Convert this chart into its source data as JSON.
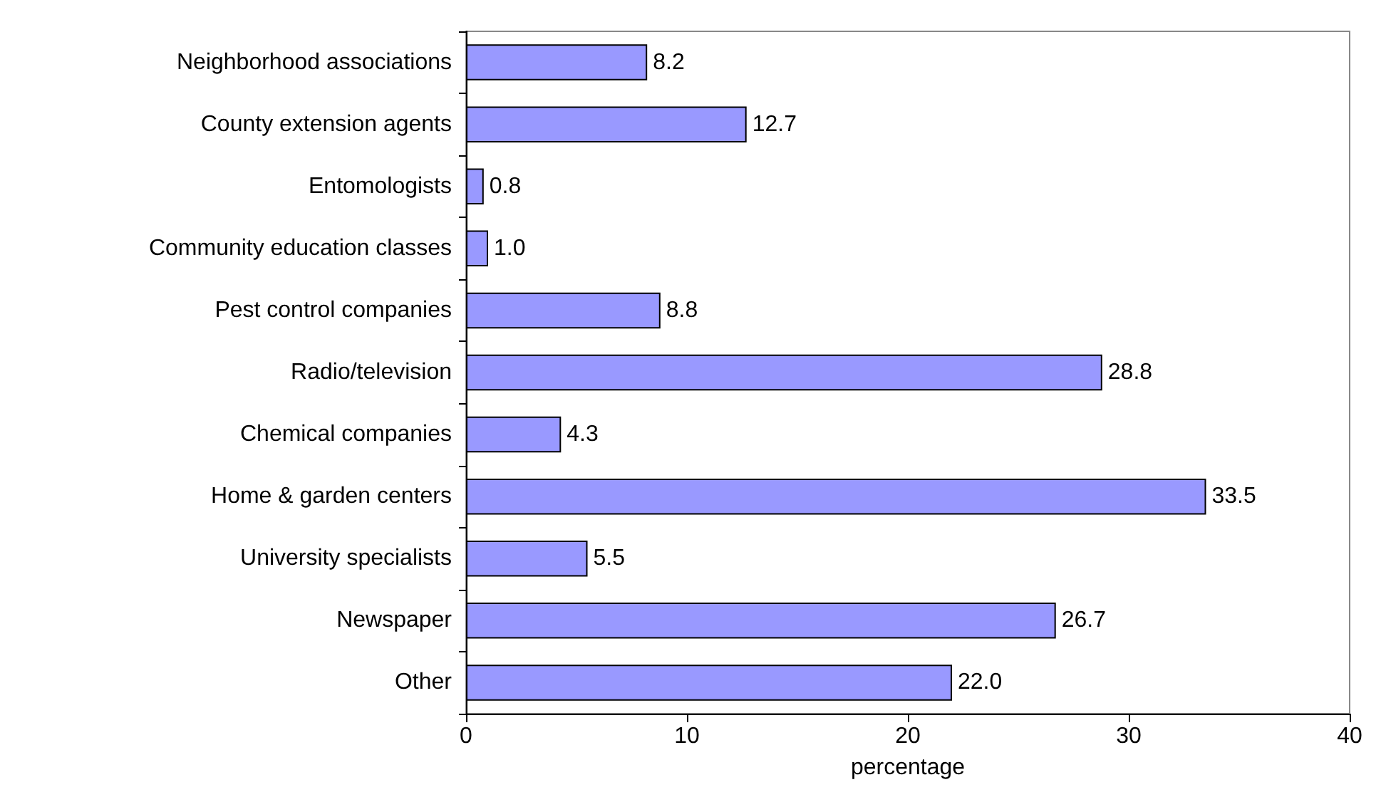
{
  "chart_data": {
    "type": "bar",
    "orientation": "horizontal",
    "xlabel": "percentage",
    "categories": [
      "Neighborhood associations",
      "County extension agents",
      "Entomologists",
      "Community education classes",
      "Pest control companies",
      "Radio/television",
      "Chemical companies",
      "Home & garden centers",
      "University specialists",
      "Newspaper",
      "Other"
    ],
    "values": [
      8.2,
      12.7,
      0.8,
      1.0,
      8.8,
      28.8,
      4.3,
      33.5,
      5.5,
      26.7,
      22.0
    ],
    "value_labels": [
      "8.2",
      "12.7",
      "0.8",
      "1.0",
      "8.8",
      "28.8",
      "4.3",
      "33.5",
      "5.5",
      "26.7",
      "22.0"
    ],
    "color": "#9999ff",
    "xlim": [
      0,
      40
    ],
    "xticks": [
      0,
      10,
      20,
      30,
      40
    ],
    "grid": false
  }
}
